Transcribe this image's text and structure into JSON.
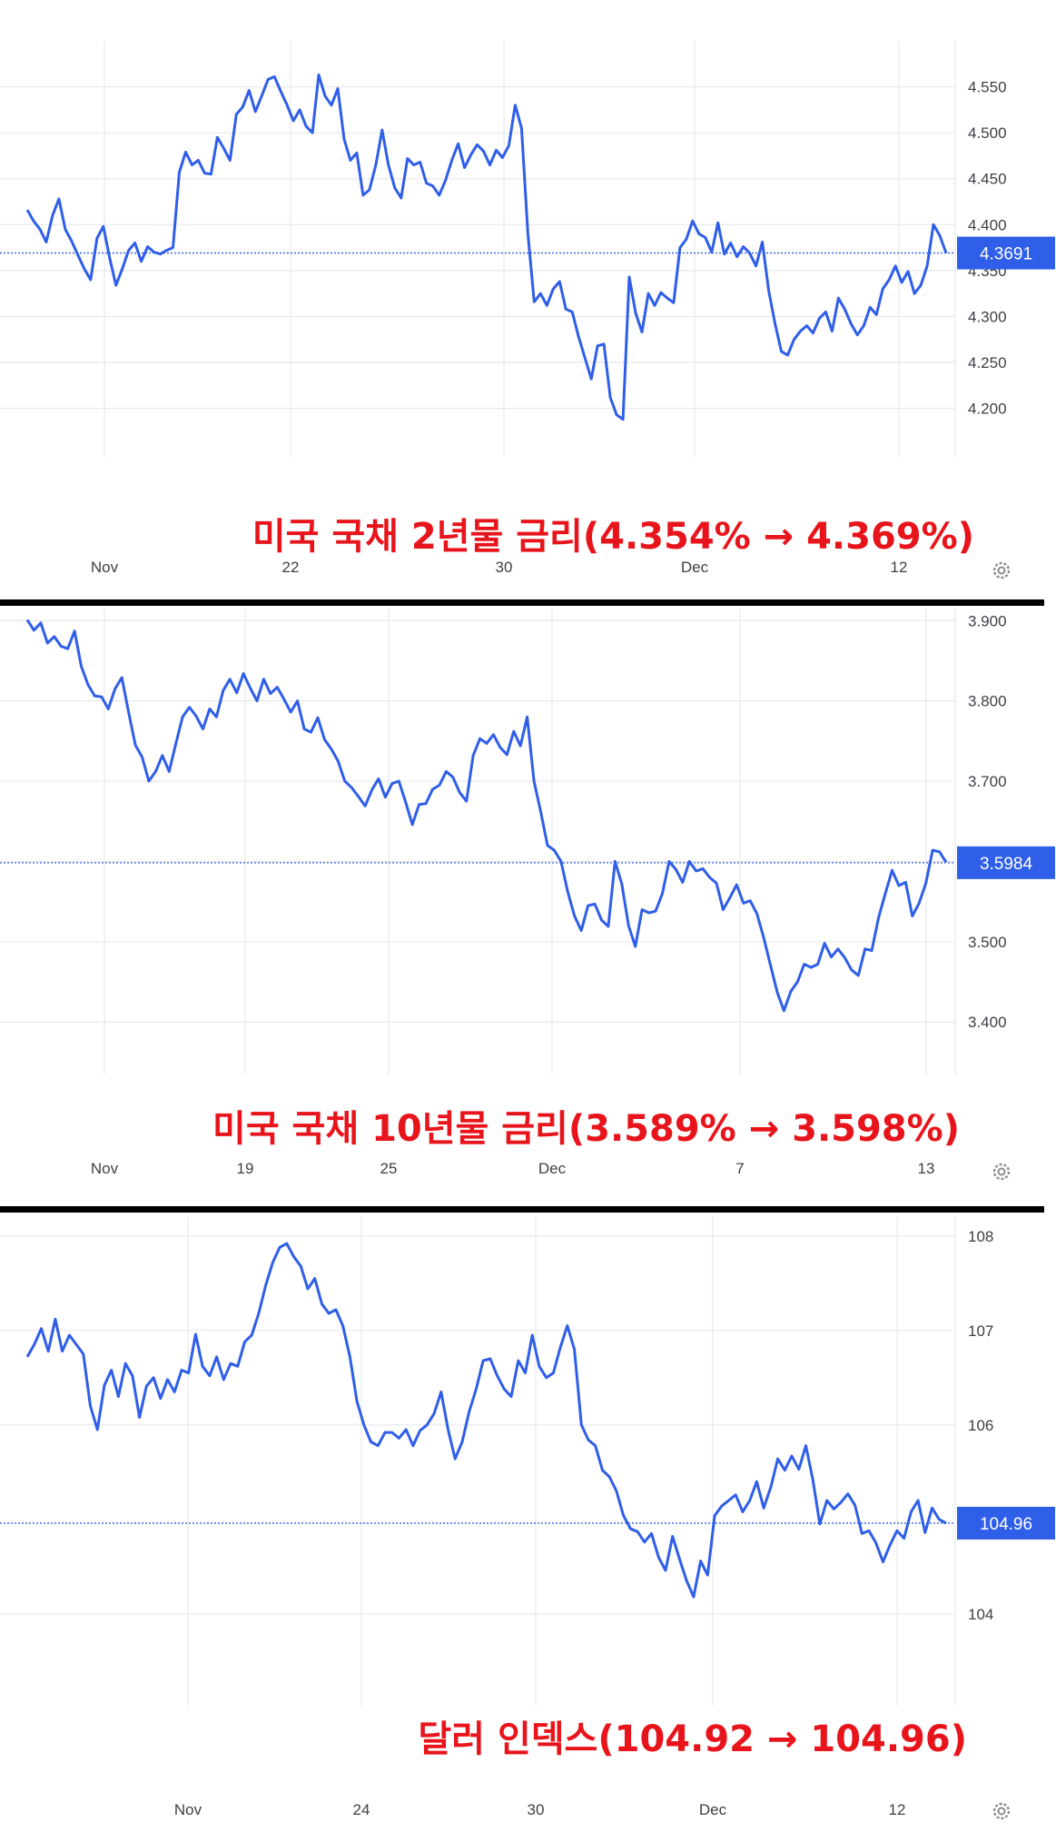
{
  "colors": {
    "line": "#2f5ee8",
    "grid": "#e6e8ec",
    "axis_text": "#3c3f44",
    "tag_bg": "#2f5ee8",
    "caption": "#e8141c"
  },
  "chart_data": [
    {
      "type": "line",
      "caption": "미국 국채 2년물 금리(4.354% → 4.369%)",
      "x_ticks": [
        "Nov",
        "22",
        "30",
        "Dec",
        "12"
      ],
      "y_ticks": [
        "4.550",
        "4.500",
        "4.450",
        "4.400",
        "4.350",
        "4.300",
        "4.250",
        "4.200"
      ],
      "ylim": [
        4.165,
        4.6
      ],
      "last_value": "4.3691",
      "series": [
        {
          "values": [
            4.416,
            4.404,
            4.395,
            4.381,
            4.41,
            4.428,
            4.395,
            4.382,
            4.367,
            4.352,
            4.34,
            4.385,
            4.398,
            4.364,
            4.334,
            4.352,
            4.372,
            4.38,
            4.36,
            4.376,
            4.37,
            4.368,
            4.372,
            4.375,
            4.457,
            4.479,
            4.465,
            4.47,
            4.456,
            4.455,
            4.495,
            4.483,
            4.47,
            4.52,
            4.528,
            4.546,
            4.523,
            4.54,
            4.558,
            4.561,
            4.545,
            4.53,
            4.513,
            4.525,
            4.507,
            4.5,
            4.563,
            4.54,
            4.53,
            4.548,
            4.493,
            4.47,
            4.478,
            4.432,
            4.438,
            4.465,
            4.503,
            4.465,
            4.44,
            4.429,
            4.472,
            4.465,
            4.468,
            4.445,
            4.442,
            4.432,
            4.448,
            4.47,
            4.488,
            4.462,
            4.476,
            4.487,
            4.48,
            4.465,
            4.481,
            4.473,
            4.486,
            4.53,
            4.505,
            4.39,
            4.316,
            4.325,
            4.312,
            4.33,
            4.338,
            4.308,
            4.305,
            4.278,
            4.255,
            4.232,
            4.268,
            4.27,
            4.212,
            4.193,
            4.188,
            4.343,
            4.304,
            4.283,
            4.325,
            4.312,
            4.326,
            4.32,
            4.315,
            4.375,
            4.384,
            4.404,
            4.39,
            4.386,
            4.37,
            4.402,
            4.368,
            4.38,
            4.365,
            4.376,
            4.369,
            4.355,
            4.381,
            4.328,
            4.292,
            4.262,
            4.258,
            4.275,
            4.284,
            4.29,
            4.282,
            4.298,
            4.305,
            4.284,
            4.32,
            4.308,
            4.292,
            4.28,
            4.29,
            4.31,
            4.302,
            4.33,
            4.34,
            4.355,
            4.337,
            4.349,
            4.325,
            4.334,
            4.355,
            4.4,
            4.388,
            4.369
          ]
        }
      ]
    },
    {
      "type": "line",
      "caption": "미국 국채 10년물 금리(3.589% → 3.598%)",
      "x_ticks": [
        "Nov",
        "19",
        "25",
        "Dec",
        "7",
        "13"
      ],
      "y_ticks": [
        "3.900",
        "3.800",
        "3.700",
        "3.600",
        "3.500",
        "3.400"
      ],
      "ylim": [
        3.355,
        3.915
      ],
      "last_value": "3.5984",
      "series": [
        {
          "values": [
            3.901,
            3.888,
            3.897,
            3.872,
            3.88,
            3.868,
            3.865,
            3.887,
            3.843,
            3.82,
            3.806,
            3.805,
            3.79,
            3.815,
            3.829,
            3.786,
            3.745,
            3.73,
            3.7,
            3.712,
            3.732,
            3.712,
            3.747,
            3.78,
            3.792,
            3.781,
            3.765,
            3.79,
            3.78,
            3.813,
            3.827,
            3.81,
            3.834,
            3.816,
            3.8,
            3.827,
            3.809,
            3.817,
            3.802,
            3.786,
            3.8,
            3.765,
            3.761,
            3.779,
            3.752,
            3.74,
            3.725,
            3.7,
            3.692,
            3.681,
            3.669,
            3.689,
            3.703,
            3.68,
            3.697,
            3.7,
            3.674,
            3.646,
            3.671,
            3.672,
            3.69,
            3.695,
            3.712,
            3.705,
            3.686,
            3.675,
            3.732,
            3.753,
            3.747,
            3.758,
            3.742,
            3.733,
            3.762,
            3.744,
            3.78,
            3.7,
            3.662,
            3.62,
            3.614,
            3.6,
            3.562,
            3.532,
            3.514,
            3.545,
            3.547,
            3.527,
            3.519,
            3.6,
            3.572,
            3.52,
            3.494,
            3.54,
            3.536,
            3.538,
            3.56,
            3.6,
            3.59,
            3.574,
            3.6,
            3.588,
            3.591,
            3.58,
            3.573,
            3.54,
            3.555,
            3.571,
            3.548,
            3.551,
            3.535,
            3.505,
            3.471,
            3.437,
            3.414,
            3.438,
            3.45,
            3.472,
            3.468,
            3.472,
            3.498,
            3.481,
            3.491,
            3.48,
            3.465,
            3.458,
            3.491,
            3.489,
            3.53,
            3.56,
            3.589,
            3.57,
            3.574,
            3.532,
            3.548,
            3.573,
            3.614,
            3.612,
            3.599
          ]
        }
      ]
    },
    {
      "type": "line",
      "caption": "달러 인덱스(104.92 → 104.96)",
      "x_ticks": [
        "Nov",
        "24",
        "30",
        "Dec",
        "12"
      ],
      "y_ticks": [
        "108",
        "107",
        "106",
        "104"
      ],
      "ylim": [
        103.2,
        108.2
      ],
      "last_value": "104.96",
      "series": [
        {
          "values": [
            106.72,
            106.85,
            107.02,
            106.78,
            107.12,
            106.78,
            106.95,
            106.85,
            106.75,
            106.2,
            105.95,
            106.42,
            106.58,
            106.3,
            106.65,
            106.52,
            106.08,
            106.41,
            106.5,
            106.28,
            106.48,
            106.35,
            106.58,
            106.55,
            106.96,
            106.62,
            106.52,
            106.72,
            106.48,
            106.65,
            106.62,
            106.88,
            106.95,
            107.18,
            107.48,
            107.72,
            107.88,
            107.92,
            107.78,
            107.68,
            107.44,
            107.55,
            107.28,
            107.18,
            107.22,
            107.05,
            106.72,
            106.25,
            106.0,
            105.82,
            105.78,
            105.92,
            105.92,
            105.86,
            105.95,
            105.78,
            105.94,
            106.0,
            106.12,
            106.35,
            105.95,
            105.64,
            105.82,
            106.14,
            106.38,
            106.68,
            106.7,
            106.52,
            106.38,
            106.3,
            106.68,
            106.55,
            106.95,
            106.62,
            106.5,
            106.55,
            106.82,
            107.05,
            106.8,
            106.0,
            105.84,
            105.78,
            105.52,
            105.45,
            105.3,
            105.04,
            104.9,
            104.87,
            104.76,
            104.85,
            104.6,
            104.46,
            104.82,
            104.58,
            104.35,
            104.18,
            104.56,
            104.41,
            105.04,
            105.14,
            105.2,
            105.26,
            105.08,
            105.2,
            105.4,
            105.12,
            105.34,
            105.64,
            105.52,
            105.67,
            105.53,
            105.78,
            105.42,
            104.95,
            105.2,
            105.11,
            105.18,
            105.27,
            105.15,
            104.85,
            104.88,
            104.75,
            104.55,
            104.73,
            104.88,
            104.8,
            105.08,
            105.2,
            104.86,
            105.12,
            105.0,
            104.96
          ]
        }
      ]
    }
  ]
}
